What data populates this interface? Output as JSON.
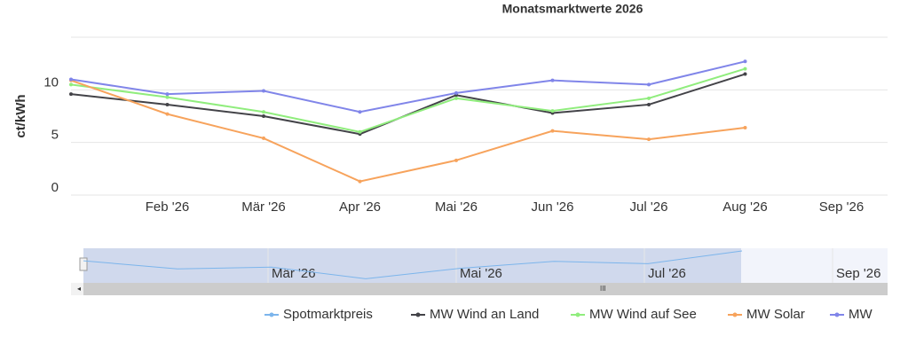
{
  "chart_data": {
    "type": "line",
    "title": "Monatsmarktwerte 2026",
    "y_label": "ct/kWh",
    "categories": [
      null,
      "Feb '26",
      "Mär '26",
      "Apr '26",
      "Mai '26",
      "Jun '26",
      "Jul '26",
      "Aug '26",
      "Sep '26"
    ],
    "series": [
      {
        "name": "Spotmarktpreis",
        "color": "#7cb5ec",
        "values": [
          null,
          null,
          null,
          null,
          null,
          null,
          null,
          null,
          null
        ]
      },
      {
        "name": "MW Wind an Land",
        "color": "#434348",
        "values": [
          9.6,
          8.6,
          7.5,
          5.8,
          9.5,
          7.8,
          8.6,
          11.5,
          null
        ]
      },
      {
        "name": "MW Wind auf See",
        "color": "#90ed7d",
        "values": [
          10.5,
          9.3,
          7.9,
          6.0,
          9.2,
          8.0,
          9.2,
          12.0,
          null
        ]
      },
      {
        "name": "MW Solar",
        "color": "#f7a35c",
        "values": [
          10.9,
          7.7,
          5.4,
          1.3,
          3.3,
          6.1,
          5.3,
          6.4,
          null
        ]
      },
      {
        "name": "MW",
        "color": "#8085e9",
        "values": [
          11.0,
          9.6,
          9.9,
          7.9,
          9.7,
          10.9,
          10.5,
          12.7,
          null
        ]
      }
    ],
    "ylim": [
      0,
      15
    ],
    "yticks": [
      0,
      5,
      10
    ],
    "grid": true
  }
}
